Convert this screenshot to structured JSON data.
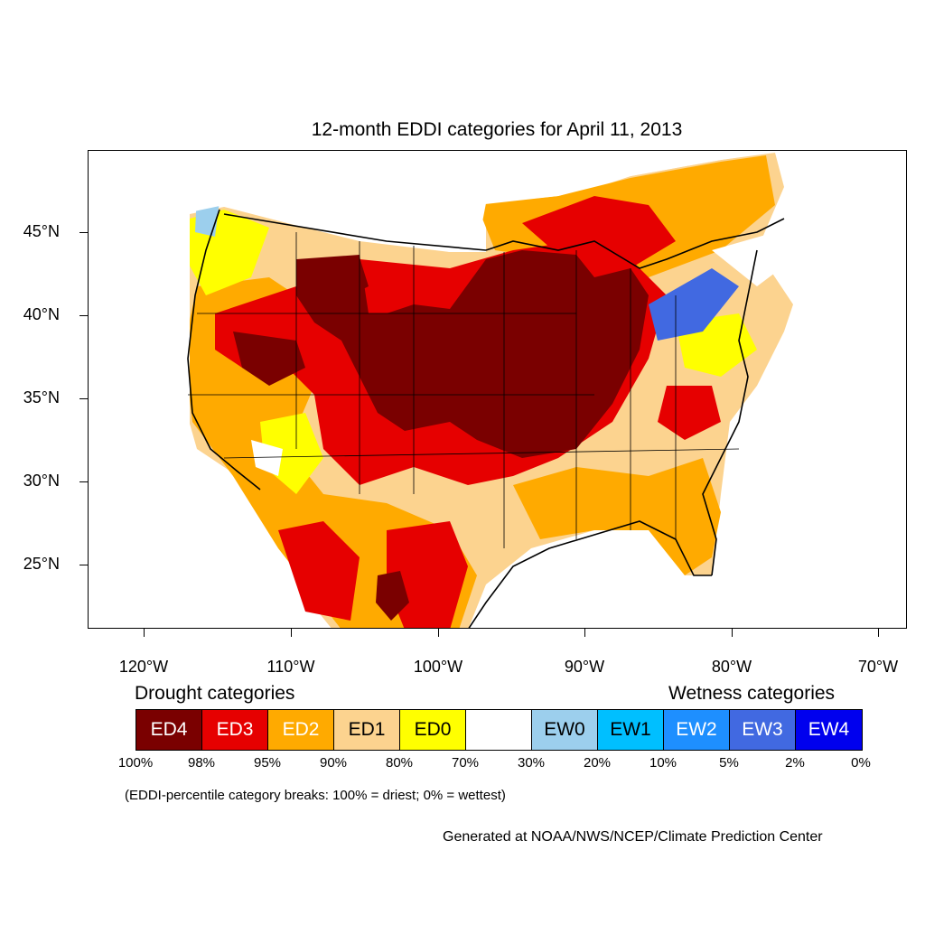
{
  "title": "12-month EDDI categories for April 11, 2013",
  "y_axis_labels": [
    "45°N",
    "40°N",
    "35°N",
    "30°N",
    "25°N"
  ],
  "x_axis_labels": [
    "120°W",
    "110°W",
    "100°W",
    "90°W",
    "80°W",
    "70°W"
  ],
  "legend": {
    "drought_title": "Drought categories",
    "wetness_title": "Wetness categories",
    "categories": [
      {
        "label": "ED4",
        "color": "#7a0000",
        "text_color": "#ffffff"
      },
      {
        "label": "ED3",
        "color": "#e60000",
        "text_color": "#ffffff"
      },
      {
        "label": "ED2",
        "color": "#ffaa00",
        "text_color": "#ffffff"
      },
      {
        "label": "ED1",
        "color": "#fcd38f",
        "text_color": "#000000"
      },
      {
        "label": "ED0",
        "color": "#ffff00",
        "text_color": "#000000"
      },
      {
        "label": "",
        "color": "#ffffff",
        "text_color": "#000000"
      },
      {
        "label": "EW0",
        "color": "#9ccfed",
        "text_color": "#000000"
      },
      {
        "label": "EW1",
        "color": "#00bfff",
        "text_color": "#000000"
      },
      {
        "label": "EW2",
        "color": "#1e8fff",
        "text_color": "#ffffff"
      },
      {
        "label": "EW3",
        "color": "#4169e1",
        "text_color": "#ffffff"
      },
      {
        "label": "EW4",
        "color": "#0000ee",
        "text_color": "#ffffff"
      }
    ],
    "breaks": [
      "100%",
      "98%",
      "95%",
      "90%",
      "80%",
      "70%",
      "30%",
      "20%",
      "10%",
      "5%",
      "2%",
      "0%"
    ]
  },
  "note": "(EDDI-percentile category breaks: 100% = driest; 0% = wettest)",
  "credit": "Generated at NOAA/NWS/NCEP/Climate Prediction Center"
}
